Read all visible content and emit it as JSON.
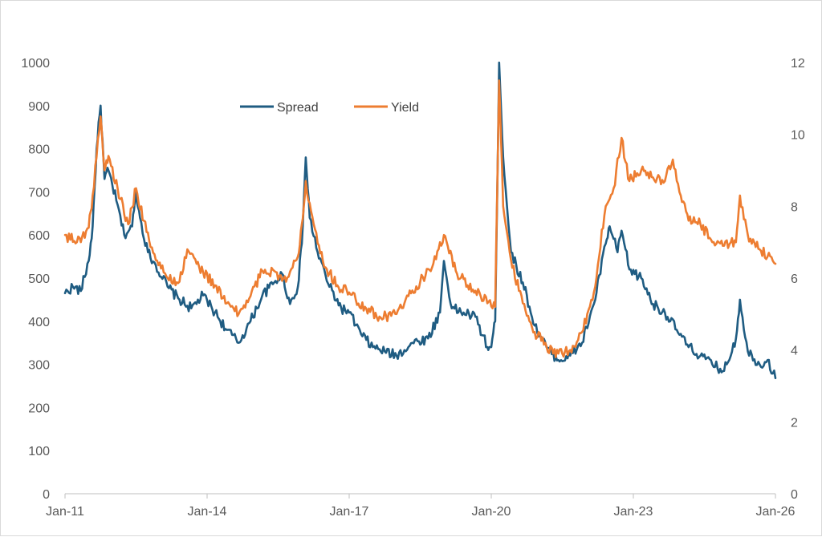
{
  "chart_data": {
    "type": "line",
    "title": "",
    "xlabel": "",
    "ylabel": "",
    "y2label": "",
    "x_ticks": [
      "Jan-11",
      "Jan-14",
      "Jan-17",
      "Jan-20",
      "Jan-23",
      "Jan-26"
    ],
    "x_range": [
      "2011-01",
      "2026-01"
    ],
    "ylim": [
      0,
      1000
    ],
    "y_ticks": [
      "0",
      "100",
      "200",
      "300",
      "400",
      "500",
      "600",
      "700",
      "800",
      "900",
      "1000"
    ],
    "y2lim": [
      0,
      12
    ],
    "y2_ticks": [
      "0",
      "2",
      "4",
      "6",
      "8",
      "10",
      "12"
    ],
    "grid": false,
    "legend_position": "top-center",
    "series": [
      {
        "name": "Spread",
        "axis": "left",
        "color": "#1f5c82",
        "points": [
          [
            "2011-01",
            465
          ],
          [
            "2011-03",
            480
          ],
          [
            "2011-05",
            470
          ],
          [
            "2011-07",
            540
          ],
          [
            "2011-08",
            620
          ],
          [
            "2011-09",
            800
          ],
          [
            "2011-10",
            900
          ],
          [
            "2011-11",
            730
          ],
          [
            "2011-12",
            750
          ],
          [
            "2012-02",
            680
          ],
          [
            "2012-04",
            600
          ],
          [
            "2012-06",
            620
          ],
          [
            "2012-07",
            700
          ],
          [
            "2012-08",
            640
          ],
          [
            "2012-10",
            560
          ],
          [
            "2012-12",
            530
          ],
          [
            "2013-03",
            480
          ],
          [
            "2013-06",
            450
          ],
          [
            "2013-09",
            430
          ],
          [
            "2013-12",
            460
          ],
          [
            "2014-03",
            420
          ],
          [
            "2014-06",
            380
          ],
          [
            "2014-09",
            350
          ],
          [
            "2014-12",
            400
          ],
          [
            "2015-03",
            460
          ],
          [
            "2015-06",
            490
          ],
          [
            "2015-08",
            510
          ],
          [
            "2015-10",
            440
          ],
          [
            "2015-12",
            480
          ],
          [
            "2016-01",
            580
          ],
          [
            "2016-02",
            780
          ],
          [
            "2016-03",
            640
          ],
          [
            "2016-05",
            560
          ],
          [
            "2016-08",
            480
          ],
          [
            "2016-11",
            430
          ],
          [
            "2017-01",
            420
          ],
          [
            "2017-04",
            370
          ],
          [
            "2017-07",
            340
          ],
          [
            "2017-10",
            330
          ],
          [
            "2018-01",
            320
          ],
          [
            "2018-05",
            350
          ],
          [
            "2018-09",
            360
          ],
          [
            "2018-12",
            420
          ],
          [
            "2019-01",
            540
          ],
          [
            "2019-03",
            430
          ],
          [
            "2019-06",
            420
          ],
          [
            "2019-09",
            410
          ],
          [
            "2019-12",
            340
          ],
          [
            "2020-01",
            340
          ],
          [
            "2020-02",
            400
          ],
          [
            "2020-03",
            1000
          ],
          [
            "2020-04",
            780
          ],
          [
            "2020-06",
            560
          ],
          [
            "2020-09",
            490
          ],
          [
            "2020-12",
            390
          ],
          [
            "2021-03",
            340
          ],
          [
            "2021-06",
            310
          ],
          [
            "2021-09",
            320
          ],
          [
            "2021-12",
            350
          ],
          [
            "2022-03",
            440
          ],
          [
            "2022-06",
            580
          ],
          [
            "2022-07",
            620
          ],
          [
            "2022-09",
            560
          ],
          [
            "2022-10",
            610
          ],
          [
            "2022-12",
            520
          ],
          [
            "2023-03",
            500
          ],
          [
            "2023-06",
            440
          ],
          [
            "2023-09",
            420
          ],
          [
            "2023-12",
            380
          ],
          [
            "2024-03",
            340
          ],
          [
            "2024-06",
            320
          ],
          [
            "2024-09",
            300
          ],
          [
            "2024-12",
            285
          ],
          [
            "2025-03",
            360
          ],
          [
            "2025-04",
            450
          ],
          [
            "2025-06",
            330
          ],
          [
            "2025-09",
            300
          ],
          [
            "2025-11",
            310
          ],
          [
            "2026-01",
            268
          ]
        ]
      },
      {
        "name": "Yield",
        "axis": "right",
        "color": "#ed7d31",
        "points": [
          [
            "2011-01",
            7.2
          ],
          [
            "2011-04",
            7.0
          ],
          [
            "2011-07",
            7.4
          ],
          [
            "2011-08",
            8.3
          ],
          [
            "2011-10",
            10.5
          ],
          [
            "2011-11",
            9.0
          ],
          [
            "2011-12",
            9.4
          ],
          [
            "2012-03",
            8.2
          ],
          [
            "2012-05",
            7.5
          ],
          [
            "2012-07",
            8.5
          ],
          [
            "2012-09",
            7.6
          ],
          [
            "2012-12",
            6.5
          ],
          [
            "2013-03",
            6.0
          ],
          [
            "2013-06",
            5.9
          ],
          [
            "2013-08",
            6.8
          ],
          [
            "2013-11",
            6.3
          ],
          [
            "2014-03",
            5.8
          ],
          [
            "2014-06",
            5.3
          ],
          [
            "2014-09",
            5.0
          ],
          [
            "2014-12",
            5.5
          ],
          [
            "2015-03",
            6.2
          ],
          [
            "2015-06",
            6.2
          ],
          [
            "2015-09",
            5.9
          ],
          [
            "2015-12",
            6.6
          ],
          [
            "2016-01",
            7.5
          ],
          [
            "2016-02",
            8.7
          ],
          [
            "2016-04",
            7.5
          ],
          [
            "2016-07",
            6.3
          ],
          [
            "2016-10",
            5.8
          ],
          [
            "2017-01",
            5.6
          ],
          [
            "2017-05",
            5.2
          ],
          [
            "2017-09",
            4.9
          ],
          [
            "2018-01",
            5.0
          ],
          [
            "2018-04",
            5.5
          ],
          [
            "2018-07",
            5.9
          ],
          [
            "2018-10",
            6.3
          ],
          [
            "2019-01",
            7.2
          ],
          [
            "2019-04",
            6.2
          ],
          [
            "2019-07",
            5.8
          ],
          [
            "2019-10",
            5.6
          ],
          [
            "2019-12",
            5.3
          ],
          [
            "2020-02",
            5.2
          ],
          [
            "2020-03",
            11.5
          ],
          [
            "2020-04",
            8.0
          ],
          [
            "2020-06",
            6.5
          ],
          [
            "2020-09",
            5.3
          ],
          [
            "2020-12",
            4.5
          ],
          [
            "2021-03",
            4.1
          ],
          [
            "2021-06",
            3.9
          ],
          [
            "2021-09",
            4.0
          ],
          [
            "2021-12",
            4.5
          ],
          [
            "2022-03",
            5.6
          ],
          [
            "2022-06",
            8.0
          ],
          [
            "2022-08",
            8.5
          ],
          [
            "2022-10",
            9.9
          ],
          [
            "2022-12",
            8.7
          ],
          [
            "2023-03",
            9.0
          ],
          [
            "2023-06",
            8.8
          ],
          [
            "2023-09",
            8.7
          ],
          [
            "2023-11",
            9.3
          ],
          [
            "2024-01",
            8.3
          ],
          [
            "2024-03",
            7.6
          ],
          [
            "2024-06",
            7.5
          ],
          [
            "2024-09",
            7.0
          ],
          [
            "2024-12",
            6.9
          ],
          [
            "2025-03",
            7.0
          ],
          [
            "2025-04",
            8.3
          ],
          [
            "2025-06",
            7.2
          ],
          [
            "2025-09",
            6.8
          ],
          [
            "2025-11",
            6.6
          ],
          [
            "2026-01",
            6.4
          ]
        ]
      }
    ]
  }
}
